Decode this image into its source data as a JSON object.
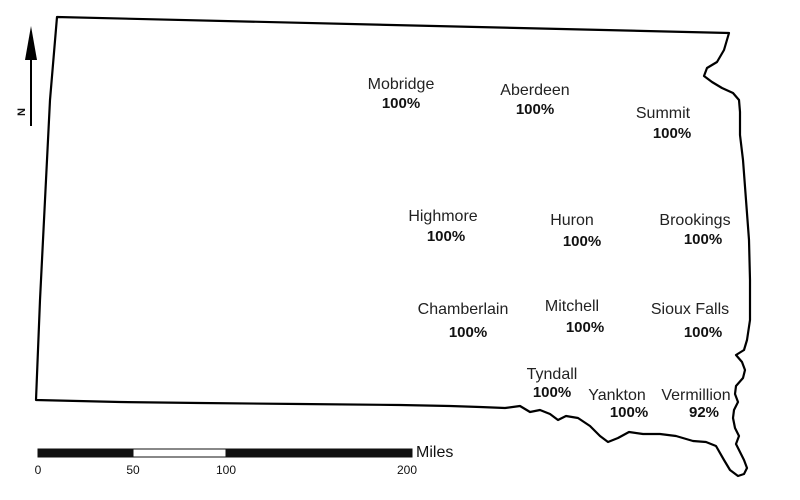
{
  "map": {
    "region_outline": "state-outline",
    "north_arrow": {
      "label": "N"
    },
    "scale_bar": {
      "units": "Miles",
      "ticks": [
        "0",
        "50",
        "100",
        "200"
      ]
    },
    "colors": {
      "outline": "#000000",
      "text": "#222222"
    }
  },
  "sites": [
    {
      "name": "Mobridge",
      "value": "100%"
    },
    {
      "name": "Aberdeen",
      "value": "100%"
    },
    {
      "name": "Summit",
      "value": "100%"
    },
    {
      "name": "Highmore",
      "value": "100%"
    },
    {
      "name": "Huron",
      "value": "100%"
    },
    {
      "name": "Brookings",
      "value": "100%"
    },
    {
      "name": "Chamberlain",
      "value": "100%"
    },
    {
      "name": "Mitchell",
      "value": "100%"
    },
    {
      "name": "Sioux Falls",
      "value": "100%"
    },
    {
      "name": "Tyndall",
      "value": "100%"
    },
    {
      "name": "Yankton",
      "value": "100%"
    },
    {
      "name": "Vermillion",
      "value": "92%"
    }
  ]
}
